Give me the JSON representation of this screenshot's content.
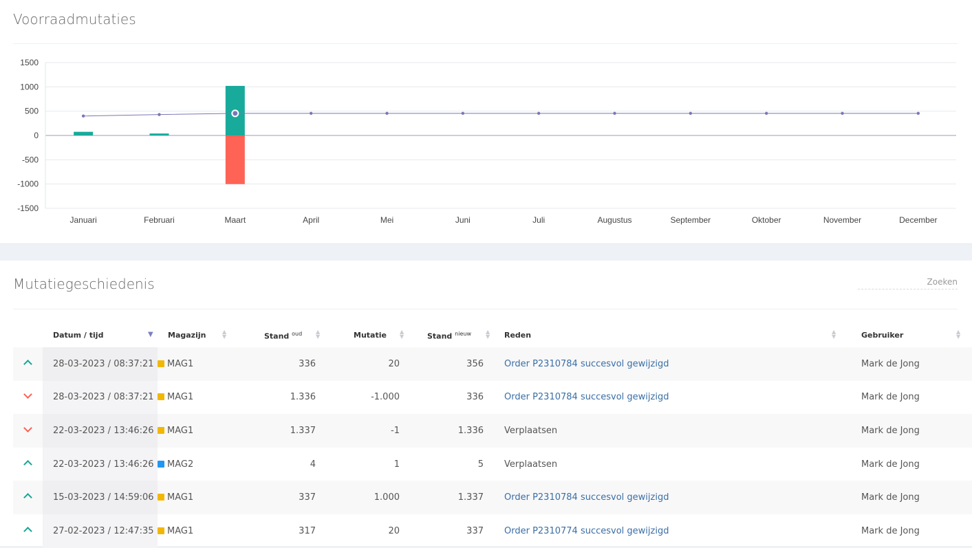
{
  "chart_section": {
    "title": "Voorraadmutaties"
  },
  "chart_data": {
    "type": "bar",
    "categories": [
      "Januari",
      "Februari",
      "Maart",
      "April",
      "Mei",
      "Juni",
      "Juli",
      "Augustus",
      "September",
      "Oktober",
      "November",
      "December"
    ],
    "series": [
      {
        "type": "bar",
        "values": [
          75,
          40,
          1020,
          0,
          0,
          0,
          0,
          0,
          0,
          0,
          0,
          0
        ],
        "color": "#18aa9b"
      },
      {
        "type": "bar",
        "values": [
          0,
          0,
          -1001,
          0,
          0,
          0,
          0,
          0,
          0,
          0,
          0,
          0
        ],
        "color": "#ff6355"
      },
      {
        "type": "line",
        "values": [
          400,
          430,
          455,
          455,
          455,
          455,
          455,
          455,
          455,
          455,
          455,
          455
        ],
        "color": "#7b76b6"
      }
    ],
    "yticks": [
      1500,
      1000,
      500,
      0,
      -500,
      -1000,
      -1500
    ],
    "ylim": [
      -1500,
      1500
    ],
    "grid": true
  },
  "history": {
    "title": "Mutatiegeschiedenis",
    "search_placeholder": "Zoeken",
    "columns": {
      "datum": "Datum / tijd",
      "magazijn": "Magazijn",
      "stand_oud": "Stand",
      "stand_oud_sup": "oud",
      "mutatie": "Mutatie",
      "stand_nieuw": "Stand",
      "stand_nieuw_sup": "nieuw",
      "reden": "Reden",
      "gebruiker": "Gebruiker"
    },
    "warehouse_colors": {
      "MAG1": "#f2b705",
      "MAG2": "#2196f3"
    },
    "rows": [
      {
        "dir": "up",
        "datum": "28-03-2023 / 08:37:21",
        "magazijn": "MAG1",
        "oud": "336",
        "mutatie": "20",
        "nieuw": "356",
        "reden": "Order P2310784 succesvol gewijzigd",
        "link": true,
        "gebruiker": "Mark de Jong"
      },
      {
        "dir": "down",
        "datum": "28-03-2023 / 08:37:21",
        "magazijn": "MAG1",
        "oud": "1.336",
        "mutatie": "-1.000",
        "nieuw": "336",
        "reden": "Order P2310784 succesvol gewijzigd",
        "link": true,
        "gebruiker": "Mark de Jong"
      },
      {
        "dir": "down",
        "datum": "22-03-2023 / 13:46:26",
        "magazijn": "MAG1",
        "oud": "1.337",
        "mutatie": "-1",
        "nieuw": "1.336",
        "reden": "Verplaatsen",
        "link": false,
        "gebruiker": "Mark de Jong"
      },
      {
        "dir": "up",
        "datum": "22-03-2023 / 13:46:26",
        "magazijn": "MAG2",
        "oud": "4",
        "mutatie": "1",
        "nieuw": "5",
        "reden": "Verplaatsen",
        "link": false,
        "gebruiker": "Mark de Jong"
      },
      {
        "dir": "up",
        "datum": "15-03-2023 / 14:59:06",
        "magazijn": "MAG1",
        "oud": "337",
        "mutatie": "1.000",
        "nieuw": "1.337",
        "reden": "Order P2310784 succesvol gewijzigd",
        "link": true,
        "gebruiker": "Mark de Jong"
      },
      {
        "dir": "up",
        "datum": "27-02-2023 / 12:47:35",
        "magazijn": "MAG1",
        "oud": "317",
        "mutatie": "20",
        "nieuw": "337",
        "reden": "Order P2310774 succesvol gewijzigd",
        "link": true,
        "gebruiker": "Mark de Jong"
      }
    ]
  }
}
